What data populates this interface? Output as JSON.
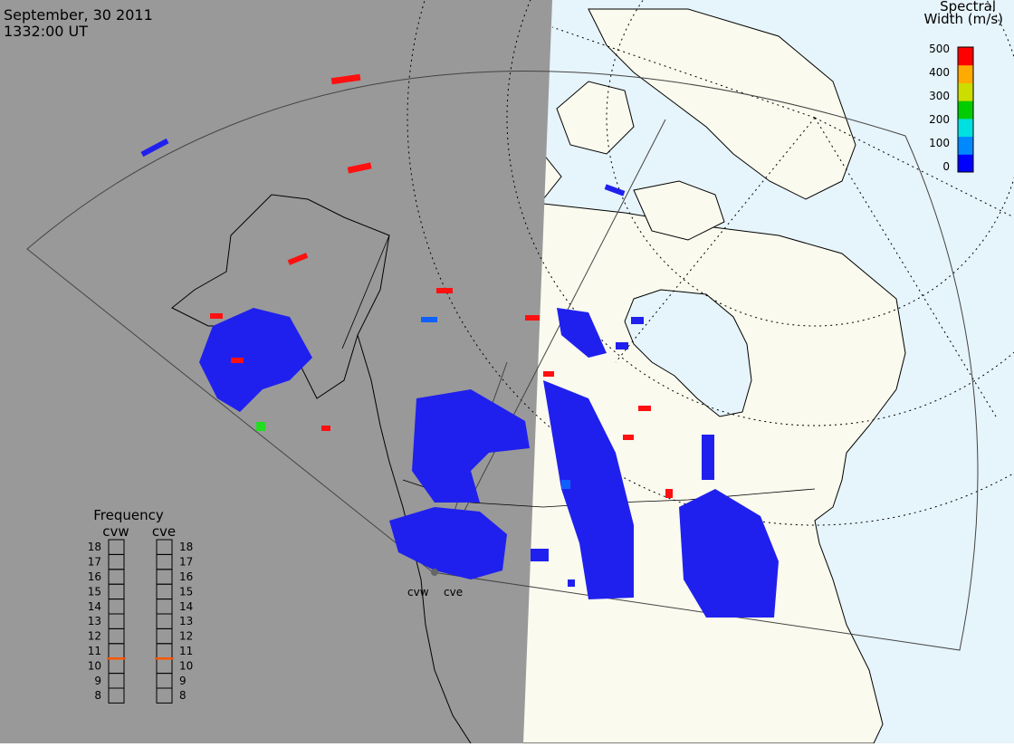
{
  "header": {
    "date": "September, 30 2011",
    "time": "1332:00 UT"
  },
  "colorbar": {
    "title_line1": "Spectral",
    "title_line2": "Width (m/s)",
    "ticks": [
      "500",
      "400",
      "300",
      "200",
      "100",
      "0"
    ],
    "colors": [
      "#0000ff",
      "#0088ff",
      "#00e0e0",
      "#00cc00",
      "#ccdd00",
      "#ffaa00",
      "#ff0000"
    ]
  },
  "map": {
    "night_color": "#999999",
    "day_ocean_color": "#e6f4fb",
    "day_land_color": "#fafaee",
    "stations": [
      "cvw",
      "cve"
    ]
  },
  "frequency": {
    "title": "Frequency",
    "columns": [
      "cvw",
      "cve"
    ],
    "ticks": [
      "18",
      "17",
      "16",
      "15",
      "14",
      "13",
      "12",
      "11",
      "10",
      "9",
      "8"
    ],
    "markers": [
      10.5,
      10.5
    ],
    "marker_color": "#ff5500"
  }
}
